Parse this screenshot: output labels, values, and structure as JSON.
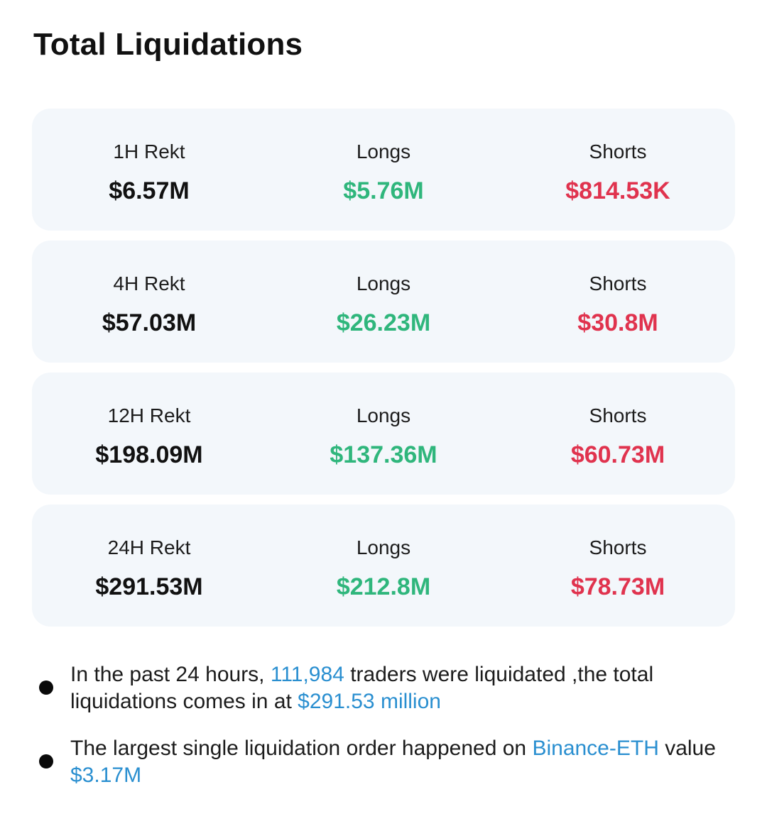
{
  "title": "Total Liquidations",
  "colors": {
    "total": "#111111",
    "longs": "#2fb67c",
    "shorts": "#e0334e",
    "highlight": "#2a8fd0",
    "card_bg": "#f3f7fb"
  },
  "rows": [
    {
      "period_label": "1H Rekt",
      "total": "$6.57M",
      "longs_label": "Longs",
      "longs": "$5.76M",
      "shorts_label": "Shorts",
      "shorts": "$814.53K"
    },
    {
      "period_label": "4H Rekt",
      "total": "$57.03M",
      "longs_label": "Longs",
      "longs": "$26.23M",
      "shorts_label": "Shorts",
      "shorts": "$30.8M"
    },
    {
      "period_label": "12H Rekt",
      "total": "$198.09M",
      "longs_label": "Longs",
      "longs": "$137.36M",
      "shorts_label": "Shorts",
      "shorts": "$60.73M"
    },
    {
      "period_label": "24H Rekt",
      "total": "$291.53M",
      "longs_label": "Longs",
      "longs": "$212.8M",
      "shorts_label": "Shorts",
      "shorts": "$78.73M"
    }
  ],
  "notes": [
    {
      "p1": "In the past 24 hours, ",
      "h1": "111,984",
      "p2": " traders were liquidated ,the total liquidations comes in at ",
      "h2": "$291.53 million",
      "p3": ""
    },
    {
      "p1": "The largest single liquidation order happened on ",
      "h1": "Binance-ETH",
      "p2": " value ",
      "h2": "$3.17M",
      "p3": ""
    }
  ]
}
